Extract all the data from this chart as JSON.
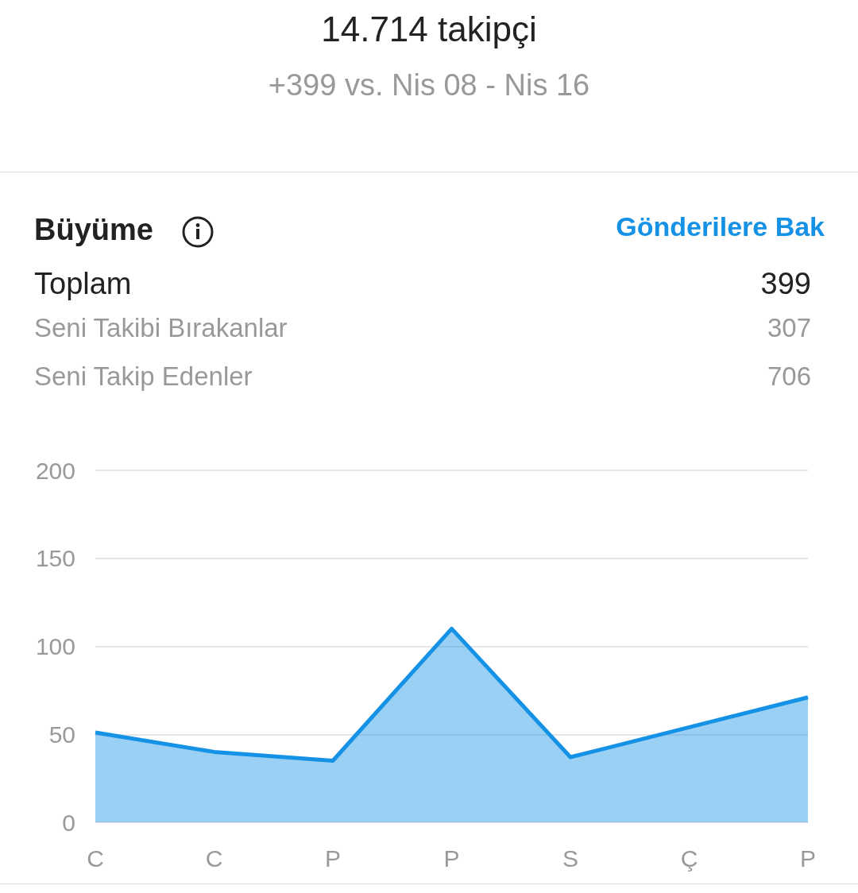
{
  "chart_data": {
    "type": "area",
    "title": "14.714 takipçi",
    "subtitle": "+399 vs. Nis 08 - Nis 16",
    "annotations": [
      "Büyüme",
      "Gönderilere Bak",
      "Toplam",
      "399",
      "Seni Takibi Bırakanlar",
      "307",
      "Seni Takip Edenler",
      "706"
    ],
    "categories": [
      "C",
      "C",
      "P",
      "P",
      "S",
      "Ç",
      "P"
    ],
    "series": [
      {
        "color": "#1592e6",
        "values": [
          51,
          40,
          35,
          110,
          37,
          54,
          71
        ]
      }
    ],
    "ylim": [
      0,
      200
    ],
    "yticks": [
      0,
      50,
      100,
      150,
      200
    ],
    "grid": "y",
    "marker": "none"
  }
}
